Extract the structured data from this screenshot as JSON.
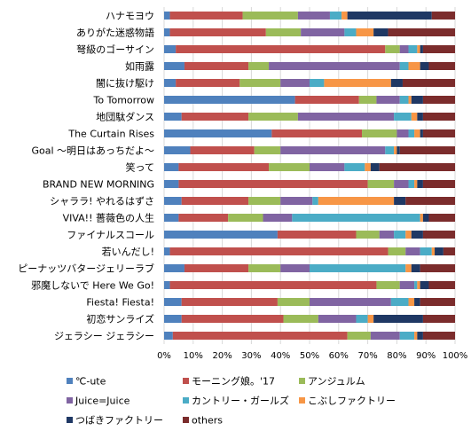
{
  "chart_data": {
    "type": "bar",
    "orientation": "horizontal",
    "stacked": "percent",
    "grid": true,
    "legend_position": "bottom",
    "xlim": [
      0,
      100
    ],
    "x_ticks": [
      "0%",
      "10%",
      "20%",
      "30%",
      "40%",
      "50%",
      "60%",
      "70%",
      "80%",
      "90%",
      "100%"
    ],
    "categories": [
      "ハナモヨウ",
      "ありがた迷惑物語",
      "弩級のゴーサイン",
      "如雨露",
      "闇に抜け駆け",
      "To Tomorrow",
      "地団駄ダンス",
      "The Curtain Rises",
      "Goal ～明日はあっちだよ～",
      "笑って",
      "BRAND NEW MORNING",
      "シャララ! やれるはずさ",
      "VIVA!! 薔薇色の人生",
      "ファイナルスコール",
      "若いんだし!",
      "ピーナッツバタージェリーラブ",
      "邪魔しないで Here We Go!",
      "Fiesta! Fiesta!",
      "初恋サンライズ",
      "ジェラシー ジェラシー"
    ],
    "series": [
      {
        "name": "℃-ute",
        "color": "#4f81bd",
        "values": [
          2,
          2,
          4,
          7,
          4,
          45,
          6,
          37,
          9,
          5,
          5,
          6,
          5,
          39,
          2,
          7,
          2,
          6,
          6,
          3
        ]
      },
      {
        "name": "モーニング娘。'17",
        "color": "#c0504d",
        "values": [
          25,
          33,
          72,
          22,
          22,
          22,
          23,
          31,
          22,
          31,
          65,
          23,
          17,
          27,
          75,
          22,
          71,
          33,
          35,
          60
        ]
      },
      {
        "name": "アンジュルム",
        "color": "#9bbb59",
        "values": [
          19,
          12,
          5,
          7,
          14,
          6,
          17,
          12,
          9,
          14,
          9,
          11,
          12,
          8,
          6,
          11,
          8,
          11,
          12,
          8
        ]
      },
      {
        "name": "Juice=Juice",
        "color": "#8064a2",
        "values": [
          11,
          15,
          3,
          45,
          10,
          8,
          33,
          4,
          36,
          12,
          5,
          11,
          10,
          5,
          5,
          10,
          5,
          28,
          13,
          10
        ]
      },
      {
        "name": "カントリー・ガールズ",
        "color": "#4bacc6",
        "values": [
          4,
          4,
          3,
          3,
          5,
          3,
          6,
          2,
          3,
          7,
          2,
          2,
          44,
          4,
          4,
          33,
          1,
          6,
          4,
          5
        ]
      },
      {
        "name": "こぶしファクトリー",
        "color": "#f79646",
        "values": [
          2,
          6,
          1,
          4,
          23,
          1,
          2,
          2,
          1,
          2,
          1,
          26,
          1,
          2,
          1,
          2,
          1,
          2,
          2,
          1
        ]
      },
      {
        "name": "つばきファクトリー",
        "color": "#1f3864",
        "values": [
          29,
          5,
          1,
          3,
          4,
          4,
          2,
          1,
          1,
          3,
          2,
          4,
          2,
          4,
          3,
          3,
          3,
          2,
          17,
          2
        ]
      },
      {
        "name": "others",
        "color": "#7b2c2c",
        "values": [
          8,
          23,
          11,
          9,
          18,
          11,
          11,
          11,
          19,
          26,
          11,
          17,
          9,
          11,
          4,
          12,
          9,
          12,
          11,
          11
        ]
      }
    ]
  }
}
